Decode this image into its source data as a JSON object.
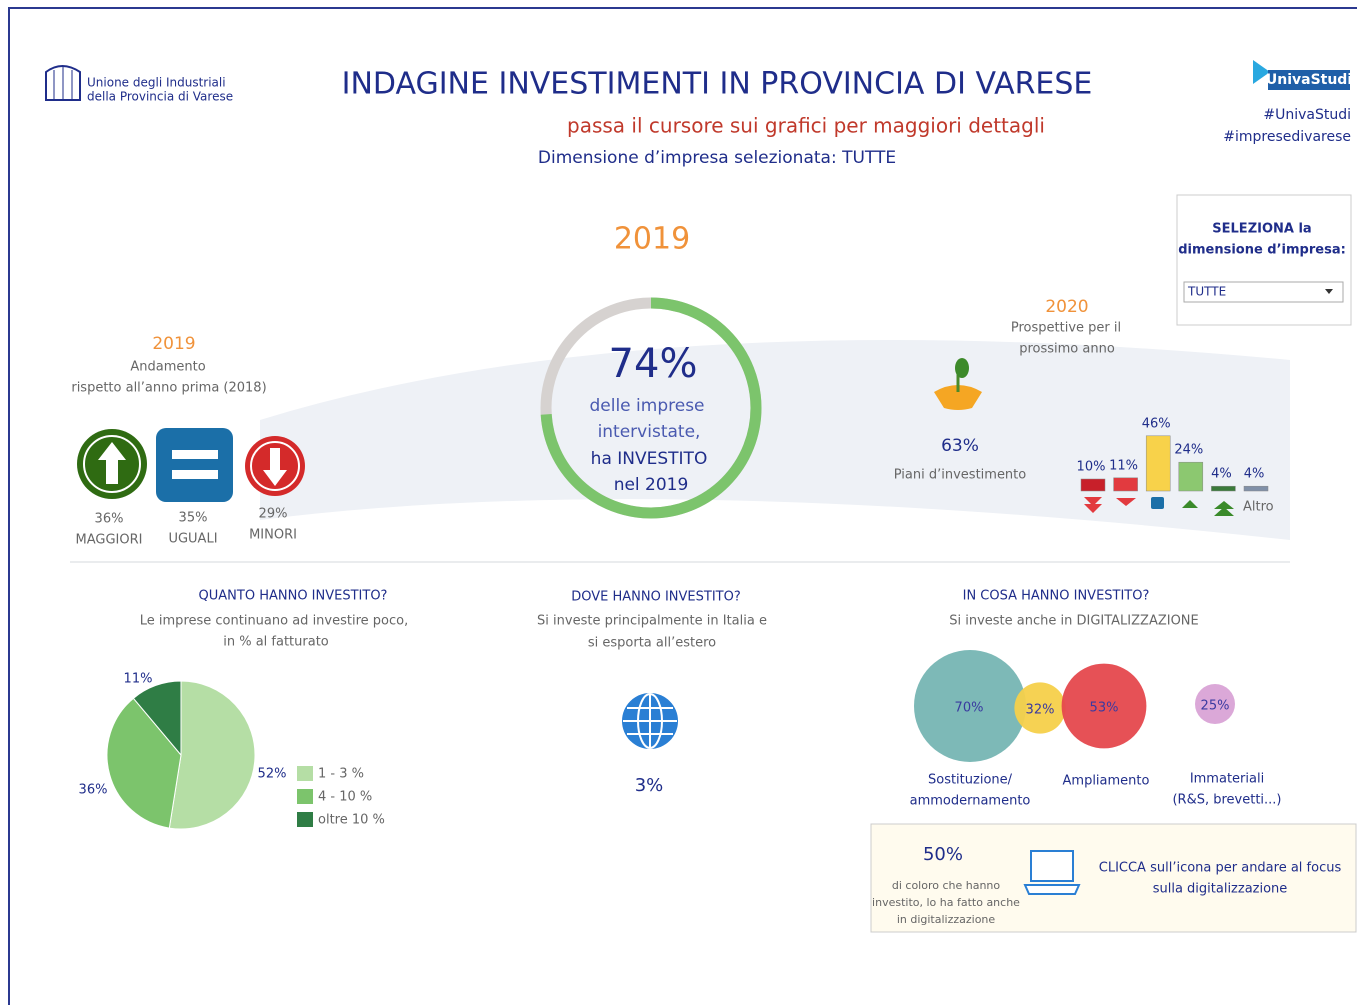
{
  "header": {
    "logo_line_1": "Unione degli Industriali",
    "logo_line_2": "della Provincia di Varese",
    "title": "INDAGINE INVESTIMENTI IN PROVINCIA DI VARESE",
    "hint": "passa il cursore sui grafici per maggiori dettagli",
    "selection": "Dimensione d’impresa selezionata: TUTTE",
    "brand": "UnivaStudi",
    "tags": [
      "#UnivaStudi",
      "#impresedivarese"
    ]
  },
  "selector": {
    "label_1": "SELEZIONA la",
    "label_2": "dimensione d’impresa:",
    "value": "TUTTE"
  },
  "trend": {
    "year": "2019",
    "subtitle_1": "Andamento",
    "subtitle_2": "rispetto all’anno prima (2018)",
    "items": [
      {
        "value_label": "36%",
        "label": "MAGGIORI"
      },
      {
        "value_label": "35%",
        "label": "UGUALI"
      },
      {
        "value_label": "29%",
        "label": "MINORI"
      }
    ]
  },
  "invested": {
    "year": "2019",
    "value": 74,
    "value_label": "74%",
    "lines": [
      "delle imprese",
      "intervistate,",
      "ha INVESTITO",
      "nel 2019"
    ]
  },
  "outlook": {
    "year": "2020",
    "subtitle_1": "Prospettive per il",
    "subtitle_2": "prossimo anno",
    "plan_value_label": "63%",
    "plan_label": "Piani d’investimento",
    "bars": {
      "values": [
        10,
        11,
        46,
        24,
        4,
        4
      ],
      "value_labels": [
        "10%",
        "11%",
        "46%",
        "24%",
        "4%",
        "4%"
      ],
      "colors": [
        "#c8202a",
        "#e23a3f",
        "#f8d24a",
        "#8cc870",
        "#3a7a3a",
        "#8090a8"
      ]
    },
    "other_label": "Altro"
  },
  "how_much": {
    "title": "QUANTO HANNO INVESTITO?",
    "subtitle_1": "Le imprese continuano ad investire poco,",
    "subtitle_2": "in % al fatturato",
    "categories": [
      "1 - 3 %",
      "4 - 10 %",
      "oltre 10 %"
    ],
    "values": [
      52,
      36,
      11
    ],
    "value_labels": [
      "52%",
      "36%",
      "11%"
    ],
    "colors": [
      "#b5dea5",
      "#7cc46c",
      "#2f7d45"
    ]
  },
  "where": {
    "title": "DOVE HANNO INVESTITO?",
    "subtitle_1": "Si investe principalmente in Italia e",
    "subtitle_2": "si esporta all’estero",
    "value_label": "3%"
  },
  "what": {
    "title": "IN COSA HANNO INVESTITO?",
    "subtitle": "Si investe anche in DIGITALIZZAZIONE",
    "values": [
      70,
      32,
      53,
      25
    ],
    "value_labels": [
      "70%",
      "32%",
      "53%",
      "25%"
    ],
    "colors": [
      "#76b5b3",
      "#f5d04a",
      "#e5484d",
      "#d9a3d6"
    ],
    "labels": [
      [
        "Sostituzione/",
        "ammodernamento"
      ],
      [],
      [
        "Ampliamento"
      ],
      [
        "Immateriali",
        "(R&S, brevetti...)"
      ]
    ]
  },
  "digital": {
    "value_label": "50%",
    "lines": [
      "di coloro che hanno",
      "investito, lo ha fatto anche",
      "in digitalizzazione"
    ],
    "cta_1": "CLICCA sull’icona per andare al focus",
    "cta_2": "sulla digitalizzazione"
  }
}
